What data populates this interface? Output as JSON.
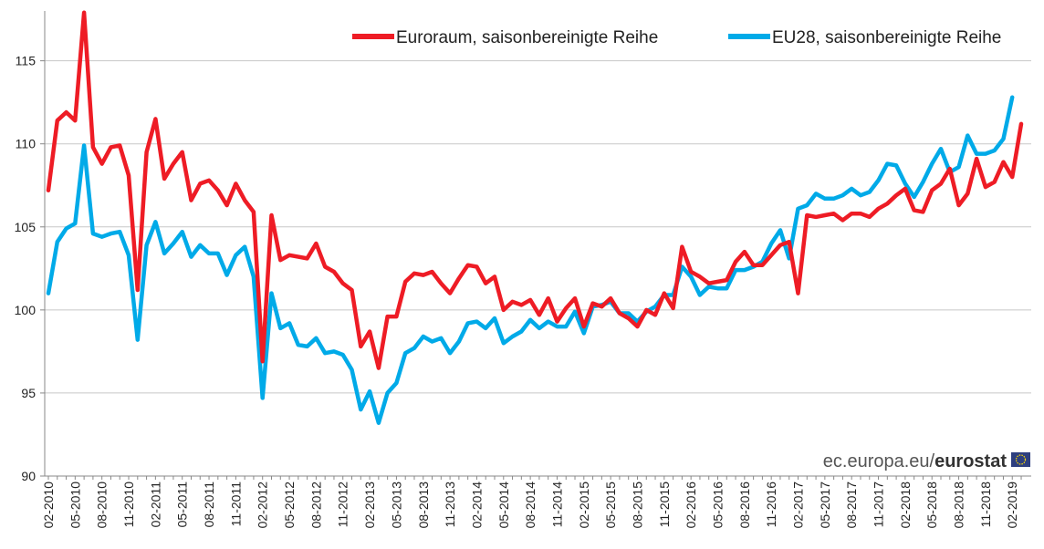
{
  "chart_data": {
    "type": "line",
    "title": "",
    "xlabel": "",
    "ylabel": "",
    "ylim": [
      90,
      118
    ],
    "yticks": [
      90,
      95,
      100,
      105,
      110,
      115
    ],
    "grid": "horizontal",
    "legend_position": "top-right",
    "x_tick_labels": [
      "02-2010",
      "05-2010",
      "08-2010",
      "11-2010",
      "02-2011",
      "05-2011",
      "08-2011",
      "11-2011",
      "02-2012",
      "05-2012",
      "08-2012",
      "11-2012",
      "02-2013",
      "05-2013",
      "08-2013",
      "11-2013",
      "02-2014",
      "05-2014",
      "08-2014",
      "11-2014",
      "02-2015",
      "05-2015",
      "08-2015",
      "11-2015",
      "02-2016",
      "05-2016",
      "08-2016",
      "11-2016",
      "02-2017",
      "05-2017",
      "08-2017",
      "11-2017",
      "02-2018",
      "05-2018",
      "08-2018",
      "11-2018",
      "02-2019"
    ],
    "x_start": "2010-02",
    "series": [
      {
        "name": "Euroraum, saisonbereinigte Reihe",
        "color": "#ee1c25",
        "values": [
          107.2,
          111.4,
          111.9,
          111.4,
          117.9,
          109.8,
          108.8,
          109.8,
          109.9,
          108.1,
          101.2,
          109.5,
          111.5,
          107.9,
          108.8,
          109.5,
          106.6,
          107.6,
          107.8,
          107.2,
          106.3,
          107.6,
          106.6,
          105.9,
          96.9,
          105.7,
          103.0,
          103.3,
          103.2,
          103.1,
          104.0,
          102.6,
          102.3,
          101.6,
          101.2,
          97.8,
          98.7,
          96.5,
          99.6,
          99.6,
          101.7,
          102.2,
          102.1,
          102.3,
          101.6,
          101.0,
          101.9,
          102.7,
          102.6,
          101.6,
          102.0,
          100.0,
          100.5,
          100.3,
          100.6,
          99.7,
          100.7,
          99.3,
          100.1,
          100.7,
          99.0,
          100.4,
          100.2,
          100.7,
          99.8,
          99.5,
          99.0,
          100.0,
          99.7,
          101.0,
          100.1,
          103.8,
          102.3,
          102.0,
          101.6,
          101.7,
          101.8,
          102.9,
          103.5,
          102.7,
          102.7,
          103.3,
          103.9,
          104.1,
          101.0,
          105.7,
          105.6,
          105.7,
          105.8,
          105.4,
          105.8,
          105.8,
          105.6,
          106.1,
          106.4,
          106.9,
          107.3,
          106.0,
          105.9,
          107.2,
          107.6,
          108.5,
          106.3,
          107.0,
          109.1,
          107.4,
          107.7,
          108.9,
          108.0,
          111.2
        ]
      },
      {
        "name": "EU28, saisonbereinigte Reihe",
        "color": "#00aae8",
        "values": [
          101.0,
          104.1,
          104.9,
          105.2,
          109.9,
          104.6,
          104.4,
          104.6,
          104.7,
          103.3,
          98.2,
          103.9,
          105.3,
          103.4,
          104.0,
          104.7,
          103.2,
          103.9,
          103.4,
          103.4,
          102.1,
          103.3,
          103.8,
          102.0,
          94.7,
          101.0,
          98.9,
          99.2,
          97.9,
          97.8,
          98.3,
          97.4,
          97.5,
          97.3,
          96.4,
          94.0,
          95.1,
          93.2,
          95.0,
          95.6,
          97.4,
          97.7,
          98.4,
          98.1,
          98.3,
          97.4,
          98.1,
          99.2,
          99.3,
          98.9,
          99.5,
          98.0,
          98.4,
          98.7,
          99.4,
          98.9,
          99.3,
          99.0,
          99.0,
          99.9,
          98.6,
          100.2,
          100.3,
          100.5,
          99.8,
          99.8,
          99.3,
          99.9,
          100.2,
          100.9,
          100.9,
          102.6,
          102.0,
          100.9,
          101.4,
          101.3,
          101.3,
          102.4,
          102.4,
          102.6,
          102.9,
          104.0,
          104.8,
          103.1,
          106.1,
          106.3,
          107.0,
          106.7,
          106.7,
          106.9,
          107.3,
          106.9,
          107.1,
          107.8,
          108.8,
          108.7,
          107.6,
          106.8,
          107.7,
          108.8,
          109.7,
          108.3,
          108.6,
          110.5,
          109.4,
          109.4,
          109.6,
          110.3,
          112.8
        ]
      }
    ]
  },
  "brand": {
    "prefix": "ec.europa.eu/",
    "name": "eurostat",
    "flag_color": "#2e3f7f",
    "star_color": "#ffdd00"
  }
}
